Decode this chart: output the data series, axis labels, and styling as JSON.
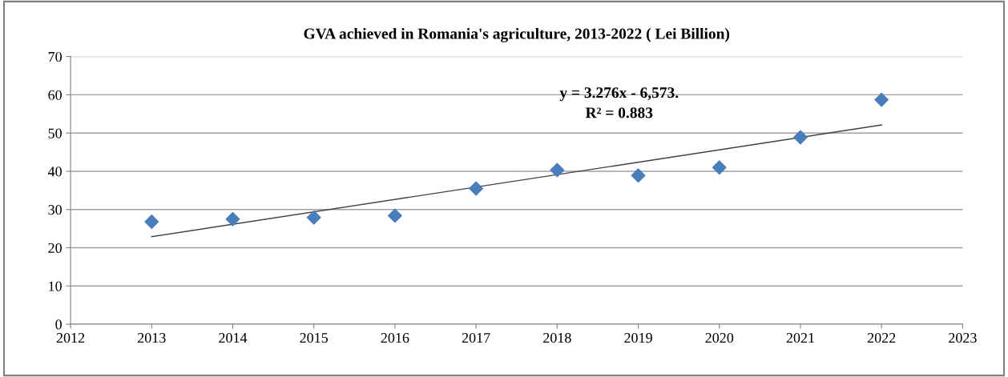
{
  "chart_data": {
    "type": "scatter",
    "title": "GVA achieved in Romania's agriculture, 2013-2022 ( Lei Billion)",
    "x": [
      2013,
      2014,
      2015,
      2016,
      2017,
      2018,
      2019,
      2020,
      2021,
      2022
    ],
    "series": [
      {
        "color": "#4a7ebb",
        "marker": "diamond",
        "values": [
          26.8,
          27.5,
          27.9,
          28.4,
          35.5,
          40.3,
          38.9,
          41.0,
          48.9,
          58.7
        ]
      },
      {
        "type": "line",
        "color": "#404040",
        "marker": "none",
        "line_style": "solid",
        "x": [
          2013,
          2022
        ],
        "values": [
          22.9,
          52.1
        ]
      }
    ],
    "annotations": [
      "y = 3.276x - 6,573.",
      "R² = 0.883"
    ],
    "xlim": [
      2012,
      2023
    ],
    "xticks": [
      2012,
      2013,
      2014,
      2015,
      2016,
      2017,
      2018,
      2019,
      2020,
      2021,
      2022,
      2023
    ],
    "ylim": [
      0,
      70
    ],
    "yticks": [
      0,
      10,
      20,
      30,
      40,
      50,
      60,
      70
    ],
    "grid": "y",
    "legend": false
  }
}
